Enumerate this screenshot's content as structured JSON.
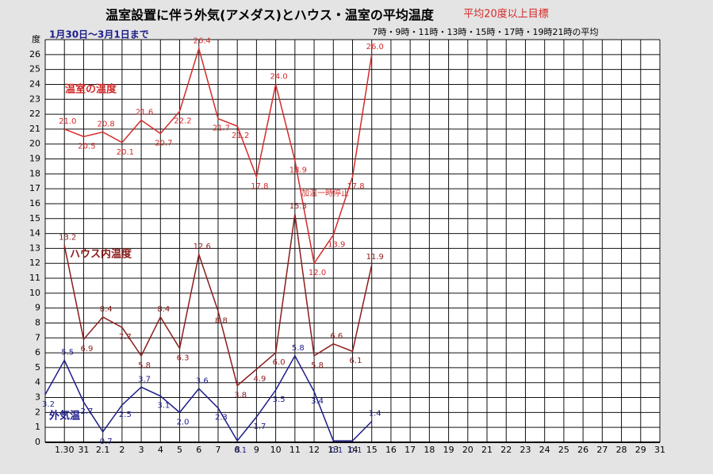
{
  "chart_data": {
    "type": "line",
    "title": "温室設置に伴う外気(アメダス)とハウス・温室の平均温度",
    "subtitle": "平均20度以上目標",
    "period": "1月30日～3月1日まで",
    "note": "7時・9時・11時・13時・15時・17時・19時21時の平均",
    "annotation": "加温一時停止",
    "categories": [
      null,
      "1.30",
      "31",
      "2.1",
      "2",
      "3",
      "4",
      "5",
      "6",
      "7",
      "8",
      "9",
      "10",
      "11",
      "12",
      "13",
      "14",
      "15",
      "16",
      "17",
      "18",
      "19",
      "20",
      "21",
      "22",
      "23",
      "24",
      "25",
      "26",
      "27",
      "28",
      "29",
      "31"
    ],
    "series": [
      {
        "name": "温室の温度",
        "color": "#d42a2a",
        "values": [
          null,
          21.0,
          20.5,
          20.8,
          20.1,
          21.6,
          20.7,
          22.2,
          26.4,
          21.7,
          21.2,
          17.8,
          24.0,
          18.9,
          12.0,
          13.9,
          17.8,
          26.0,
          null,
          null,
          null,
          null,
          null,
          null,
          null,
          null,
          null,
          null,
          null,
          null,
          null,
          null,
          null
        ],
        "value_labels": [
          null,
          "21.0",
          "20.5",
          "20.8",
          "20.1",
          "21.6",
          "20.7",
          "22.2",
          "26.4",
          "21.7",
          "21.2",
          "17.8",
          "24.0",
          "18.9",
          "12.0",
          "13.9",
          "17.8",
          "26.0",
          null,
          null,
          null,
          null,
          null,
          null,
          null,
          null,
          null,
          null,
          null,
          null,
          null,
          null,
          null
        ]
      },
      {
        "name": "ハウス内温度",
        "color": "#8b1c1c",
        "values": [
          null,
          13.2,
          6.9,
          8.4,
          7.7,
          5.8,
          8.4,
          6.3,
          12.6,
          8.8,
          3.8,
          4.9,
          6.0,
          15.3,
          5.8,
          6.6,
          6.1,
          11.9,
          null,
          null,
          null,
          null,
          null,
          null,
          null,
          null,
          null,
          null,
          null,
          null,
          null,
          null,
          null
        ],
        "value_labels": [
          null,
          "13.2",
          "6.9",
          "8.4",
          "7.7",
          "5.8",
          "8.4",
          "6.3",
          "12.6",
          "8.8",
          "3.8",
          "4.9",
          "6.0",
          "15.3",
          "5.8",
          "6.6",
          "6.1",
          "11.9",
          null,
          null,
          null,
          null,
          null,
          null,
          null,
          null,
          null,
          null,
          null,
          null,
          null,
          null,
          null
        ]
      },
      {
        "name": "外気温",
        "color": "#1c1c8b",
        "values": [
          3.2,
          5.5,
          2.7,
          0.7,
          2.5,
          3.7,
          3.1,
          2.0,
          3.6,
          2.3,
          0.1,
          1.7,
          3.5,
          5.8,
          3.4,
          0.1,
          0.1,
          1.4,
          null,
          null,
          null,
          null,
          null,
          null,
          null,
          null,
          null,
          null,
          null,
          null,
          null,
          null,
          null
        ],
        "value_labels": [
          "3.2",
          "5.5",
          "2.7",
          "0.7",
          "2.5",
          "3.7",
          "3.1",
          "2.0",
          "3.6",
          "2.3",
          "0.1",
          "1.7",
          "3.5",
          "5.8",
          "3.4",
          "0.1",
          "0.1",
          "1.4",
          null,
          null,
          null,
          null,
          null,
          null,
          null,
          null,
          null,
          null,
          null,
          null,
          null,
          null,
          null
        ]
      }
    ],
    "ylim": [
      0,
      27
    ],
    "yticks": [
      0,
      1,
      2,
      3,
      4,
      5,
      6,
      7,
      8,
      9,
      10,
      11,
      12,
      13,
      14,
      15,
      16,
      17,
      18,
      19,
      20,
      21,
      22,
      23,
      24,
      25,
      26,
      {
        "value": 27,
        "label": "度"
      }
    ],
    "grid": true
  }
}
